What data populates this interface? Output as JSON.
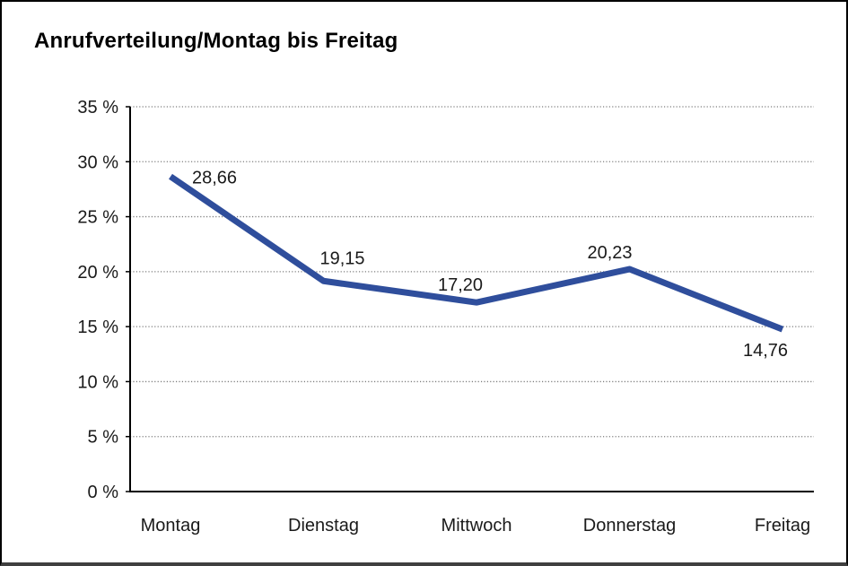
{
  "window": {
    "background_color": "#ffffff",
    "border_color": "#000000"
  },
  "chart_data": {
    "type": "line",
    "title": "Anrufverteilung/Montag bis Freitag",
    "categories": [
      "Montag",
      "Dienstag",
      "Mittwoch",
      "Donnerstag",
      "Freitag"
    ],
    "series": [
      {
        "name": "Anrufverteilung",
        "values": [
          28.66,
          19.15,
          17.2,
          20.23,
          14.76
        ],
        "value_labels": [
          "28,66",
          "19,15",
          "17,20",
          "20,23",
          "14,76"
        ],
        "line_color": "#2F4E9C"
      }
    ],
    "xlabel": "",
    "ylabel": "",
    "ylim": [
      0,
      35
    ],
    "y_tick_values": [
      0,
      5,
      10,
      15,
      20,
      25,
      30,
      35
    ],
    "y_tick_labels": [
      "0 %",
      "5 %",
      "10 %",
      "15 %",
      "20 %",
      "25 %",
      "30 %",
      "35 %"
    ],
    "grid": "horizontal-dotted",
    "grid_color": "#7d7d7d",
    "axis_color": "#000000",
    "legend_position": "none"
  }
}
